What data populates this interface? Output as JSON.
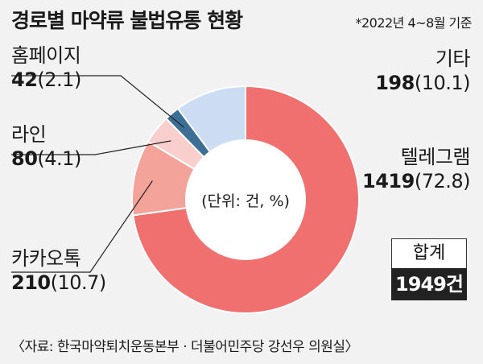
{
  "header": {
    "title": "경로별 마약류 불법유통 현황",
    "subtitle": "*2022년 4~8월 기준"
  },
  "chart_data": {
    "type": "pie",
    "subtype": "donut",
    "center_label": "(단위: 건, %)",
    "slices": [
      {
        "name": "텔레그램",
        "value": 1419,
        "pct": 72.8,
        "value_text": "1419",
        "pct_text": "(72.8)",
        "color": "#f07070"
      },
      {
        "name": "카카오톡",
        "value": 210,
        "pct": 10.7,
        "value_text": "210",
        "pct_text": "(10.7)",
        "color": "#f4a39a"
      },
      {
        "name": "라인",
        "value": 80,
        "pct": 4.1,
        "value_text": "80",
        "pct_text": "(4.1)",
        "color": "#f9cfcd"
      },
      {
        "name": "홈페이지",
        "value": 42,
        "pct": 2.1,
        "value_text": "42",
        "pct_text": "(2.1)",
        "color": "#3d6e96"
      },
      {
        "name": "기타",
        "value": 198,
        "pct": 10.1,
        "value_text": "198",
        "pct_text": "(10.1)",
        "color": "#cbdcf3"
      }
    ]
  },
  "total": {
    "label": "합계",
    "value": "1949건"
  },
  "source": "〈자료: 한국마약퇴치운동본부 · 더불어민주당 강선우 의원실〉"
}
